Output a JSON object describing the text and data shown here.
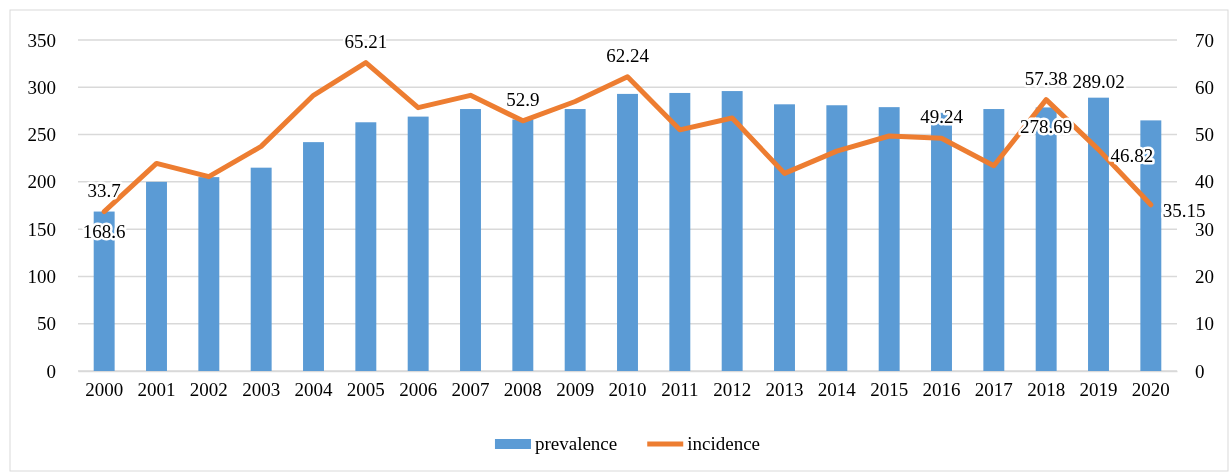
{
  "chart_data": {
    "type": "bar",
    "categories": [
      "2000",
      "2001",
      "2002",
      "2003",
      "2004",
      "2005",
      "2006",
      "2007",
      "2008",
      "2009",
      "2010",
      "2011",
      "2012",
      "2013",
      "2014",
      "2015",
      "2016",
      "2017",
      "2018",
      "2019",
      "2020"
    ],
    "series": [
      {
        "name": "prevalence",
        "color": "#5b9bd5",
        "values": [
          168.6,
          200,
          205,
          215,
          242,
          263,
          269,
          277,
          266,
          277,
          293,
          294,
          296,
          282,
          281,
          279,
          273,
          277,
          278.69,
          289.02,
          265
        ],
        "value_labels": [
          "168.6",
          null,
          null,
          null,
          null,
          null,
          null,
          null,
          null,
          null,
          null,
          null,
          null,
          null,
          null,
          null,
          null,
          null,
          "278.69",
          "289.02",
          null
        ]
      },
      {
        "name": "incidence",
        "type": "line",
        "axis": "y2",
        "color": "#ed7d31",
        "values": [
          33.7,
          43.9,
          41.1,
          47.5,
          58.3,
          65.21,
          55.7,
          58.3,
          52.9,
          57.0,
          62.24,
          51.0,
          53.5,
          41.8,
          46.5,
          49.7,
          49.24,
          43.4,
          57.38,
          46.82,
          35.15
        ],
        "value_labels": [
          "33.7",
          null,
          null,
          null,
          null,
          "65.21",
          null,
          null,
          "52.9",
          null,
          "62.24",
          null,
          null,
          null,
          null,
          null,
          "49.24",
          null,
          "57.38",
          "46.82",
          "35.15"
        ]
      }
    ],
    "ylim": [
      0,
      350
    ],
    "yticks": [
      0,
      50,
      100,
      150,
      200,
      250,
      300,
      350
    ],
    "y2lim": [
      0,
      70
    ],
    "y2ticks": [
      0,
      10,
      20,
      30,
      40,
      50,
      60,
      70
    ],
    "grid": "y",
    "legend": "bottom",
    "marker": "none",
    "line_style": "solid"
  }
}
